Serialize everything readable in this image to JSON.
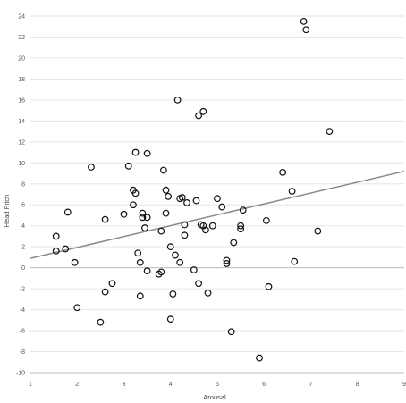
{
  "chart_data": {
    "type": "scatter",
    "title": "",
    "xlabel": "Arousal",
    "ylabel": "Head Pitch",
    "xlim": [
      1,
      9
    ],
    "ylim": [
      -10,
      24
    ],
    "xticks": [
      1,
      2,
      3,
      4,
      5,
      6,
      7,
      8,
      9
    ],
    "yticks": [
      -10,
      -8,
      -6,
      -4,
      -2,
      0,
      2,
      4,
      6,
      8,
      10,
      12,
      14,
      16,
      18,
      20,
      22,
      24
    ],
    "grid": "horizontal",
    "series": [
      {
        "marker": "open-circle",
        "color": "#111111",
        "x": [
          1.55,
          1.55,
          1.75,
          1.8,
          1.95,
          2.0,
          2.3,
          2.5,
          2.6,
          2.6,
          2.75,
          3.0,
          3.1,
          3.2,
          3.2,
          3.25,
          3.25,
          3.3,
          3.35,
          3.35,
          3.4,
          3.4,
          3.45,
          3.5,
          3.5,
          3.5,
          3.75,
          3.8,
          3.8,
          3.85,
          3.9,
          3.9,
          3.95,
          4.0,
          4.0,
          4.05,
          4.1,
          4.15,
          4.2,
          4.2,
          4.25,
          4.3,
          4.3,
          4.35,
          4.5,
          4.55,
          4.6,
          4.6,
          4.65,
          4.7,
          4.7,
          4.75,
          4.8,
          4.9,
          5.0,
          5.1,
          5.2,
          5.2,
          5.3,
          5.35,
          5.5,
          5.5,
          5.55,
          5.9,
          6.05,
          6.1,
          6.4,
          6.6,
          6.65,
          6.85,
          6.9,
          7.15,
          7.4
        ],
        "y": [
          3.0,
          1.6,
          1.8,
          5.3,
          0.5,
          -3.8,
          9.6,
          -5.2,
          4.6,
          -2.3,
          -1.5,
          5.1,
          9.7,
          7.4,
          6.0,
          11.0,
          7.1,
          1.4,
          0.5,
          -2.7,
          4.8,
          5.2,
          3.8,
          -0.3,
          4.8,
          10.9,
          -0.6,
          3.5,
          -0.4,
          9.3,
          7.4,
          5.2,
          6.8,
          2.0,
          -4.9,
          -2.5,
          1.2,
          16.0,
          6.6,
          0.5,
          6.7,
          4.1,
          3.1,
          6.2,
          -0.2,
          6.4,
          -1.5,
          14.5,
          4.1,
          14.9,
          4.0,
          3.6,
          -2.4,
          4.0,
          6.6,
          5.8,
          0.7,
          0.4,
          -6.1,
          2.4,
          3.7,
          4.0,
          5.5,
          -8.6,
          4.5,
          -1.8,
          9.1,
          7.3,
          0.6,
          23.5,
          22.7,
          3.5,
          13.0
        ]
      }
    ],
    "trendline": {
      "type": "linear",
      "color": "#8a8a8a",
      "x": [
        1,
        9
      ],
      "y": [
        0.9,
        9.2
      ]
    }
  }
}
